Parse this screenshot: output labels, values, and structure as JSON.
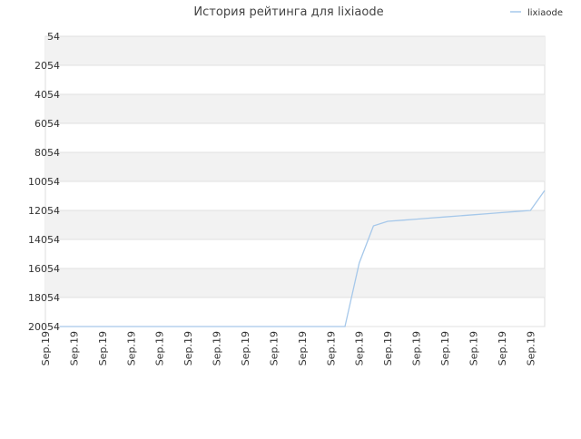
{
  "chart_data": {
    "type": "line",
    "title": "История рейтинга для lixiaode",
    "categories": [
      "Sep.19",
      null,
      "Sep.19",
      null,
      "Sep.19",
      null,
      "Sep.19",
      null,
      "Sep.19",
      null,
      "Sep.19",
      null,
      "Sep.19",
      null,
      "Sep.19",
      null,
      "Sep.19",
      null,
      "Sep.19",
      null,
      "Sep.19",
      null,
      "Sep.19",
      null,
      "Sep.19",
      null,
      "Sep.19",
      null,
      "Sep.19",
      null,
      "Sep.19",
      null,
      "Sep.19",
      null,
      "Sep.19",
      null
    ],
    "series": [
      {
        "name": "lixiaode",
        "color": "#a6c8ea",
        "values": [
          null,
          20054,
          20054,
          20054,
          20054,
          20054,
          20054,
          20054,
          20054,
          20054,
          20054,
          20054,
          20054,
          20054,
          20054,
          20054,
          20054,
          20054,
          20054,
          20054,
          20054,
          20054,
          15679,
          13117,
          12804,
          12729,
          12654,
          12579,
          12504,
          12429,
          12354,
          12279,
          12204,
          12129,
          12054,
          10679
        ]
      }
    ],
    "ylim": [
      54,
      20054
    ],
    "y_inverted": true,
    "yticks": [
      54,
      2054,
      4054,
      6054,
      8054,
      10054,
      12054,
      14054,
      16054,
      18054,
      20054
    ],
    "grid": true,
    "legend": "top-right"
  }
}
